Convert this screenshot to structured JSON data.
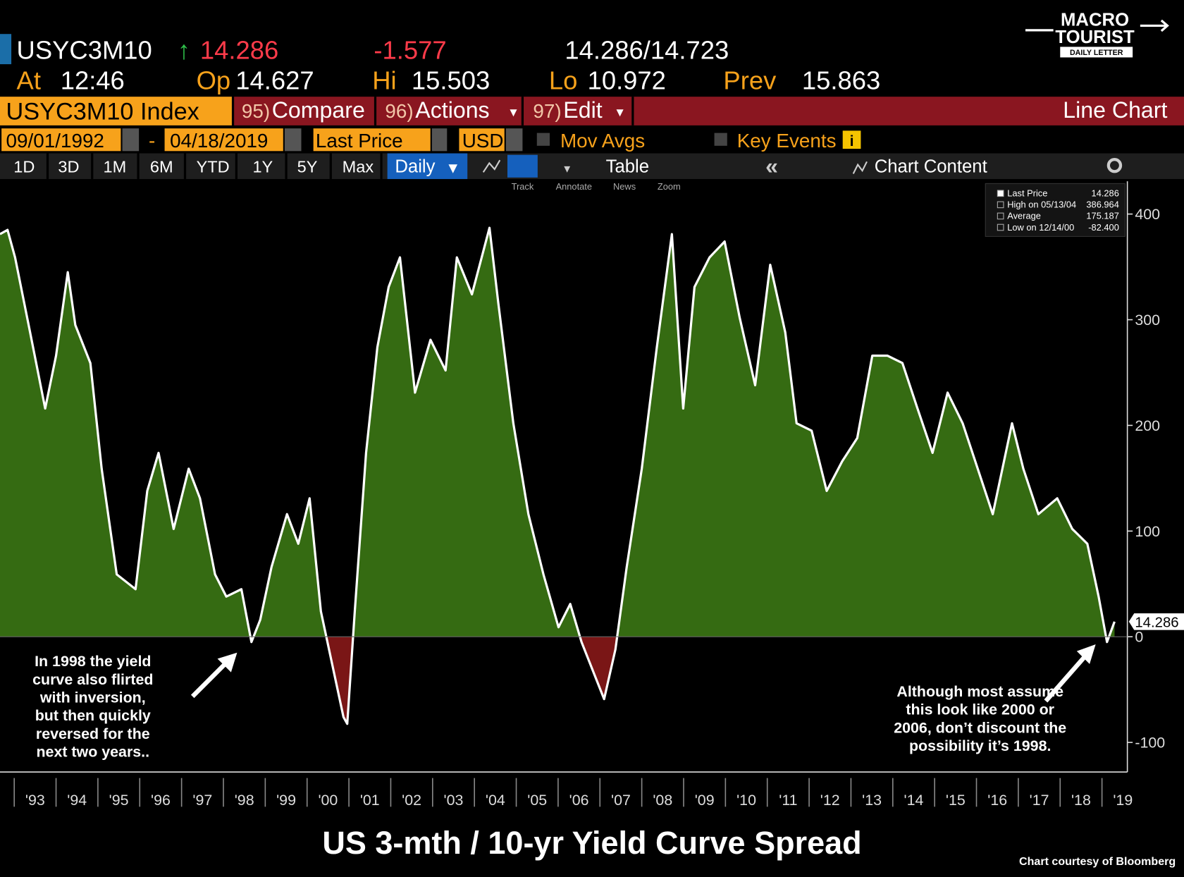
{
  "header": {
    "ticker": "USYC3M10",
    "direction": "↑",
    "last": "14.286",
    "change": "-1.577",
    "bid_ask": "14.286/14.723",
    "fields": [
      {
        "label": "At",
        "value": "12:46"
      },
      {
        "label": "Op",
        "value": "14.627"
      },
      {
        "label": "Hi",
        "value": "15.503"
      },
      {
        "label": "Lo",
        "value": "10.972"
      },
      {
        "label": "Prev",
        "value": "15.863"
      }
    ]
  },
  "logo": {
    "line1": "MACRO",
    "line2": "TOURIST",
    "tagline": "DAILY LETTER"
  },
  "menu": {
    "security": "USYC3M10 Index",
    "items": [
      {
        "number": "95)",
        "label": "Compare"
      },
      {
        "number": "96)",
        "label": "Actions"
      },
      {
        "number": "97)",
        "label": "Edit"
      }
    ],
    "chart_kind": "Line Chart"
  },
  "controls": {
    "start_date": "09/01/1992",
    "range_separator": "-",
    "end_date": "04/18/2019",
    "field": "Last Price",
    "currency": "USD",
    "options": [
      "Mov Avgs",
      "Key Events"
    ]
  },
  "toolbar": {
    "periods": [
      "1D",
      "3D",
      "1M",
      "6M",
      "YTD",
      "1Y",
      "5Y",
      "Max"
    ],
    "frequency": "Daily",
    "table": "Table",
    "collapse": "«",
    "content": "Chart Content",
    "tools": [
      "Track",
      "Annotate",
      "News",
      "Zoom"
    ]
  },
  "chart_data": {
    "type": "area",
    "title": "US 3-mth / 10-yr Yield Curve Spread",
    "source": "Chart courtesy of Bloomberg",
    "x": [
      1992.66,
      1992.84,
      1993.02,
      1993.38,
      1993.74,
      1994.0,
      1994.28,
      1994.46,
      1994.82,
      1995.09,
      1995.45,
      1995.9,
      1996.18,
      1996.45,
      1996.81,
      1997.17,
      1997.44,
      1997.8,
      1998.07,
      1998.43,
      1998.67,
      1998.88,
      1999.15,
      1999.52,
      1999.79,
      2000.06,
      2000.33,
      2000.6,
      2000.87,
      2000.96,
      2001.14,
      2001.41,
      2001.68,
      2001.95,
      2002.22,
      2002.58,
      2002.95,
      2003.31,
      2003.58,
      2003.94,
      2004.36,
      2004.57,
      2004.93,
      2005.29,
      2005.65,
      2006.01,
      2006.29,
      2006.56,
      2006.92,
      2007.1,
      2007.37,
      2007.64,
      2008.0,
      2008.36,
      2008.72,
      2008.99,
      2009.26,
      2009.62,
      2009.98,
      2010.34,
      2010.71,
      2011.07,
      2011.43,
      2011.7,
      2012.06,
      2012.42,
      2012.79,
      2013.15,
      2013.51,
      2013.87,
      2014.23,
      2014.59,
      2014.95,
      2015.31,
      2015.67,
      2016.03,
      2016.39,
      2016.85,
      2017.12,
      2017.48,
      2017.93,
      2018.29,
      2018.65,
      2018.92,
      2019.12,
      2019.3
    ],
    "series": [
      {
        "name": "Last Price",
        "color": "#ffffff",
        "values": [
          381,
          385,
          359,
          288,
          216,
          266,
          345,
          295,
          259,
          159,
          59,
          45,
          138,
          174,
          102,
          159,
          131,
          59,
          38,
          45,
          -5,
          16,
          66,
          116,
          88,
          131,
          24,
          -26,
          -76,
          -82.4,
          24,
          174,
          274,
          331,
          359,
          231,
          281,
          252,
          359,
          324,
          386.964,
          316,
          202,
          116,
          59,
          9,
          31,
          -5,
          -41,
          -59,
          -12,
          66,
          159,
          274,
          381,
          216,
          331,
          359,
          374,
          302,
          238,
          352,
          288,
          202,
          195,
          138,
          166,
          188,
          266,
          266,
          259,
          216,
          174,
          231,
          202,
          159,
          116,
          202,
          159,
          116,
          131,
          102,
          88,
          38,
          -5,
          14.286
        ]
      }
    ],
    "fill_positive": "#356b12",
    "fill_negative": "#7a1616",
    "stats": [
      {
        "name": "Last Price",
        "value": 14.286
      },
      {
        "name": "High on 05/13/04",
        "value": 386.964
      },
      {
        "name": "Average",
        "value": 175.187
      },
      {
        "name": "Low on 12/14/00",
        "value": -82.4,
        "label": "-82.400"
      }
    ],
    "xlim": [
      1992.66,
      2019.3
    ],
    "ylim": [
      -128,
      431
    ],
    "xticks": [
      {
        "value": 1993,
        "label": "'93"
      },
      {
        "value": 1994,
        "label": "'94"
      },
      {
        "value": 1995,
        "label": "'95"
      },
      {
        "value": 1996,
        "label": "'96"
      },
      {
        "value": 1997,
        "label": "'97"
      },
      {
        "value": 1998,
        "label": "'98"
      },
      {
        "value": 1999,
        "label": "'99"
      },
      {
        "value": 2000,
        "label": "'00"
      },
      {
        "value": 2001,
        "label": "'01"
      },
      {
        "value": 2002,
        "label": "'02"
      },
      {
        "value": 2003,
        "label": "'03"
      },
      {
        "value": 2004,
        "label": "'04"
      },
      {
        "value": 2005,
        "label": "'05"
      },
      {
        "value": 2006,
        "label": "'06"
      },
      {
        "value": 2007,
        "label": "'07"
      },
      {
        "value": 2008,
        "label": "'08"
      },
      {
        "value": 2009,
        "label": "'09"
      },
      {
        "value": 2010,
        "label": "'10"
      },
      {
        "value": 2011,
        "label": "'11"
      },
      {
        "value": 2012,
        "label": "'12"
      },
      {
        "value": 2013,
        "label": "'13"
      },
      {
        "value": 2014,
        "label": "'14"
      },
      {
        "value": 2015,
        "label": "'15"
      },
      {
        "value": 2016,
        "label": "'16"
      },
      {
        "value": 2017,
        "label": "'17"
      },
      {
        "value": 2018,
        "label": "'18"
      },
      {
        "value": 2019,
        "label": "'19"
      }
    ],
    "yticks": [
      -100,
      0,
      100,
      200,
      300,
      400
    ],
    "annotations": [
      {
        "lines": [
          "In 1998 the yield",
          "curve also flirted",
          "with inversion,",
          "but then quickly",
          "reversed for the",
          "next two years.."
        ]
      },
      {
        "lines": [
          "Although most assume",
          "this look like 2000 or",
          "2006, don’t discount the",
          "possibility it’s 1998."
        ]
      }
    ]
  }
}
